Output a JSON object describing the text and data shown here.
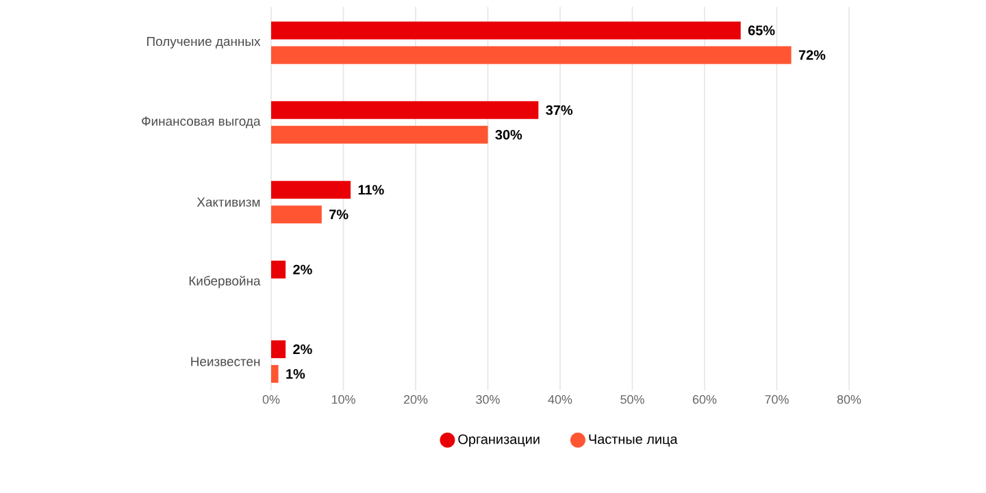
{
  "chart_data": {
    "type": "bar",
    "orientation": "horizontal",
    "categories": [
      "Получение данных",
      "Финансовая выгода",
      "Хактивизм",
      "Кибервойна",
      "Неизвестен"
    ],
    "series": [
      {
        "name": "Организации",
        "color": "#e80006",
        "values": [
          65,
          37,
          11,
          2,
          2
        ],
        "value_labels": [
          "65%",
          "37%",
          "11%",
          "2%",
          "2%"
        ]
      },
      {
        "name": "Частные лица",
        "color": "#ff5533",
        "values": [
          72,
          30,
          7,
          null,
          1
        ],
        "value_labels": [
          "72%",
          "30%",
          "7%",
          null,
          "1%"
        ]
      }
    ],
    "xlim": [
      0,
      80
    ],
    "xticks": [
      {
        "value": 0,
        "label": "0%"
      },
      {
        "value": 10,
        "label": "10%"
      },
      {
        "value": 20,
        "label": "20%"
      },
      {
        "value": 30,
        "label": "30%"
      },
      {
        "value": 40,
        "label": "40%"
      },
      {
        "value": 50,
        "label": "50%"
      },
      {
        "value": 60,
        "label": "60%"
      },
      {
        "value": 70,
        "label": "70%"
      },
      {
        "value": 80,
        "label": "80%"
      }
    ],
    "grid": "x",
    "legend": "bottom"
  }
}
